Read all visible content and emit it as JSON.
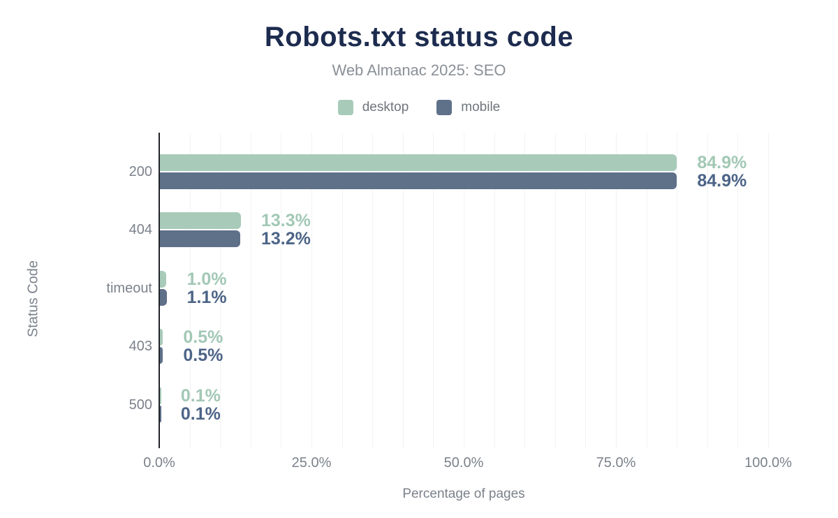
{
  "header": {
    "title": "Robots.txt status code",
    "subtitle": "Web Almanac 2025: SEO"
  },
  "colors": {
    "title": "#1c2b4e",
    "desktop_bar": "#a8cbb9",
    "desktop_value_label": "#a2c8b5",
    "mobile_bar": "#5f7089",
    "mobile_value_label": "#4c6487",
    "axis_text": "#7b828b",
    "axis_line": "#212327",
    "gridline": "#f2f3f6"
  },
  "chart_data": {
    "type": "bar",
    "orientation": "horizontal",
    "title": "Robots.txt status code",
    "subtitle": "Web Almanac 2025: SEO",
    "categories": [
      "200",
      "404",
      "timeout",
      "403",
      "500"
    ],
    "series": [
      {
        "name": "desktop",
        "color": "#a8cbb9",
        "label_color": "#a2c8b5",
        "values": [
          84.9,
          13.3,
          1.0,
          0.5,
          0.1
        ]
      },
      {
        "name": "mobile",
        "color": "#5f7089",
        "label_color": "#4c6487",
        "values": [
          84.9,
          13.2,
          1.1,
          0.5,
          0.1
        ]
      }
    ],
    "value_label_format": "{value}%",
    "xlabel": "Percentage of pages",
    "ylabel": "Status Code",
    "x_ticks": [
      "0.0%",
      "25.0%",
      "50.0%",
      "75.0%",
      "100.0%"
    ],
    "x_tick_values": [
      0,
      25,
      50,
      75,
      100
    ],
    "xlim": [
      0,
      100
    ],
    "grid": "vertical minor gridlines every 5%",
    "legend_position": "top-center"
  }
}
